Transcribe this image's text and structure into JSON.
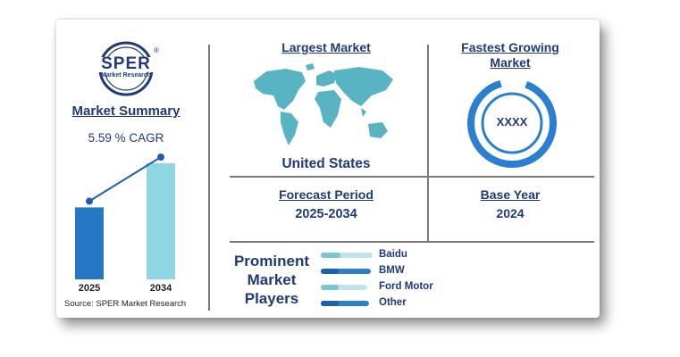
{
  "logo": {
    "name": "SPER",
    "registered": "®",
    "subtitle": "Market Research"
  },
  "summary": {
    "title": "Market Summary",
    "cagr": "5.59 % CAGR",
    "source": "Source: SPER Market Research",
    "colors": {
      "bar1": "#2577c4",
      "bar2": "#8fd6e2",
      "line": "#1f5fae"
    }
  },
  "chart_data": {
    "type": "bar",
    "categories": [
      "2025",
      "2034"
    ],
    "values": [
      0.62,
      1.0
    ],
    "unit": "relative bar height (no axis printed)"
  },
  "largest_market": {
    "title": "Largest Market",
    "value": "United States"
  },
  "fastest_growing": {
    "title_line1": "Fastest Growing",
    "title_line2": "Market",
    "value": "XXXX"
  },
  "forecast": {
    "title": "Forecast Period",
    "value": "2025-2034"
  },
  "base_year": {
    "title": "Base Year",
    "value": "2024"
  },
  "players": {
    "title_line1": "Prominent",
    "title_line2": "Market",
    "title_line3": "Players",
    "items": [
      {
        "name": "Baidu",
        "style": "light"
      },
      {
        "name": "BMW",
        "style": "dark"
      },
      {
        "name": "Ford Motor",
        "style": "light"
      },
      {
        "name": "Other",
        "style": "dark"
      }
    ]
  }
}
